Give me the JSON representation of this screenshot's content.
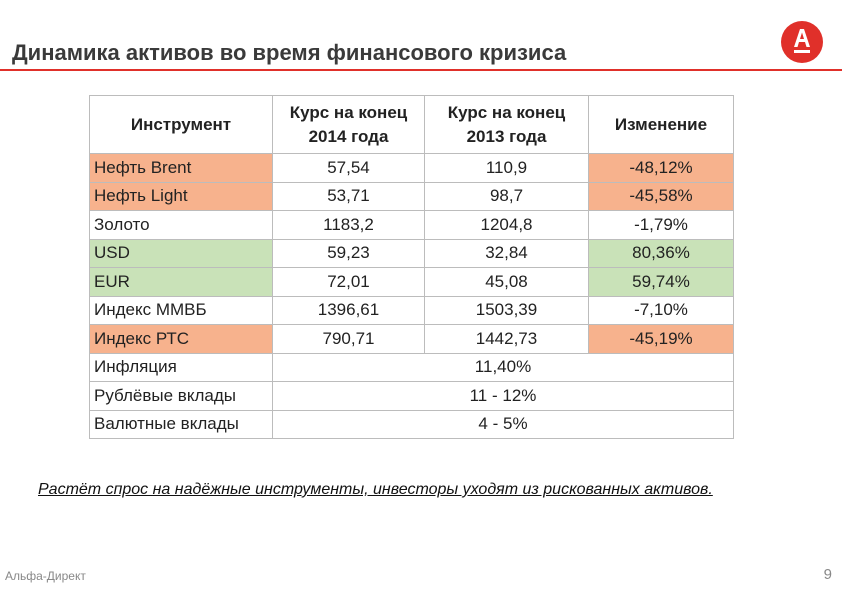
{
  "header": {
    "title": "Динамика активов во время финансового кризиса"
  },
  "table": {
    "columns": [
      "Инструмент",
      "Курс на конец 2014 года",
      "Курс на конец 2013 года",
      "Изменение"
    ],
    "rows": [
      {
        "cells": [
          "Нефть Brent",
          "57,54",
          "110,9",
          "-48,12%"
        ],
        "fill": "#f7b28d"
      },
      {
        "cells": [
          "Нефть Light",
          "53,71",
          "98,7",
          "-45,58%"
        ],
        "fill": "#f7b28d"
      },
      {
        "cells": [
          "Золото",
          "1183,2",
          "1204,8",
          "-1,79%"
        ]
      },
      {
        "cells": [
          "USD",
          "59,23",
          "32,84",
          "80,36%"
        ],
        "fill": "#c9e2b8"
      },
      {
        "cells": [
          "EUR",
          "72,01",
          "45,08",
          "59,74%"
        ],
        "fill": "#c9e2b8"
      },
      {
        "cells": [
          "Индекс ММВБ",
          "1396,61",
          "1503,39",
          "-7,10%"
        ]
      },
      {
        "cells": [
          "Индекс РТС",
          "790,71",
          "1442,73",
          "-45,19%"
        ],
        "fill": "#f7b28d"
      },
      {
        "cells": [
          "Инфляция",
          "11,40%"
        ]
      },
      {
        "cells": [
          "Рублёвые вклады",
          "11 - 12%"
        ]
      },
      {
        "cells": [
          "Валютные вклады",
          "4 - 5%"
        ]
      }
    ]
  },
  "note": "Растёт спрос на надёжные инструменты, инвесторы уходят из рискованных активов.",
  "footer": {
    "brand": "Альфа-Директ",
    "page": "9"
  }
}
